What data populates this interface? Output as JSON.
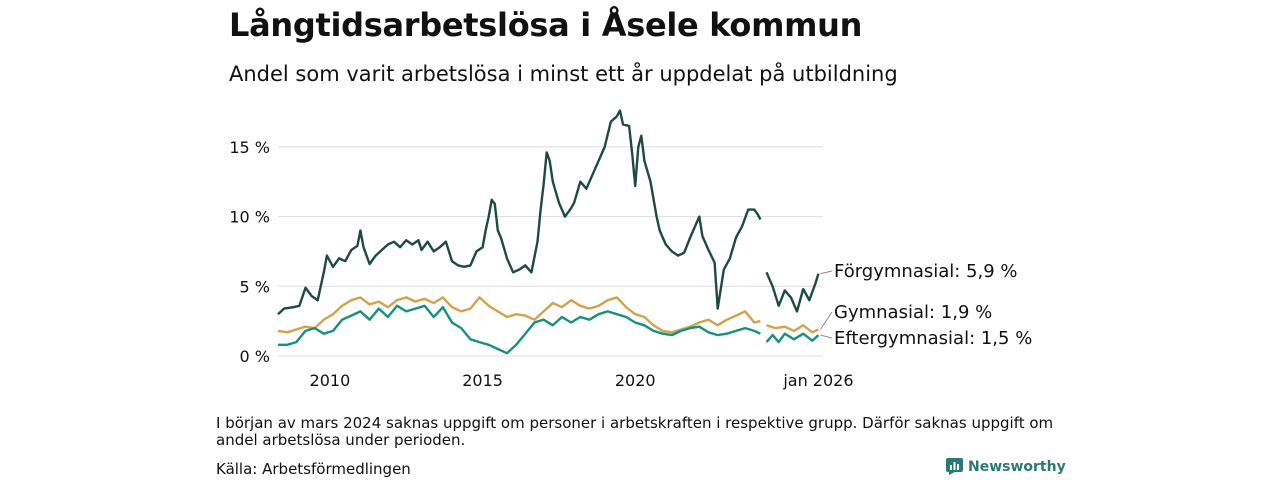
{
  "title": "Långtidsarbetslösa i Åsele kommun",
  "subtitle": "Andel som varit arbetslösa i minst ett år uppdelat på utbildning",
  "note": "I början av mars 2024 saknas uppgift om personer i arbetskraften i respektive grupp. Därför saknas uppgift om andel arbetslösa under perioden.",
  "source": "Källa: Arbetsförmedlingen",
  "brand": "Newsworthy",
  "chart_data": {
    "type": "line",
    "xlim": [
      2008.3,
      2026.15
    ],
    "ylim": [
      0,
      17.5
    ],
    "grid": true,
    "x_ticks": [
      {
        "value": 2010,
        "label": "2010"
      },
      {
        "value": 2015,
        "label": "2015"
      },
      {
        "value": 2020,
        "label": "2020"
      },
      {
        "value": 2026.0,
        "label": "jan 2026"
      }
    ],
    "y_ticks": [
      {
        "value": 0,
        "label": "0 %"
      },
      {
        "value": 5,
        "label": "5 %"
      },
      {
        "value": 10,
        "label": "10 %"
      },
      {
        "value": 15,
        "label": "15 %"
      }
    ],
    "gap": [
      2024.0,
      2024.3
    ],
    "series": [
      {
        "name": "Förgymnasial",
        "end_label": "Förgymnasial: 5,9 %",
        "color": "#1f4a41",
        "points": [
          [
            2008.3,
            3.0
          ],
          [
            2008.5,
            3.4
          ],
          [
            2008.8,
            3.5
          ],
          [
            2009.0,
            3.6
          ],
          [
            2009.2,
            4.9
          ],
          [
            2009.4,
            4.3
          ],
          [
            2009.6,
            4.0
          ],
          [
            2009.8,
            6.0
          ],
          [
            2009.9,
            7.2
          ],
          [
            2010.1,
            6.4
          ],
          [
            2010.3,
            7.0
          ],
          [
            2010.5,
            6.8
          ],
          [
            2010.7,
            7.6
          ],
          [
            2010.9,
            7.9
          ],
          [
            2011.0,
            9.0
          ],
          [
            2011.1,
            7.8
          ],
          [
            2011.3,
            6.6
          ],
          [
            2011.5,
            7.2
          ],
          [
            2011.7,
            7.6
          ],
          [
            2011.9,
            8.0
          ],
          [
            2012.1,
            8.2
          ],
          [
            2012.3,
            7.8
          ],
          [
            2012.5,
            8.3
          ],
          [
            2012.7,
            8.0
          ],
          [
            2012.9,
            8.3
          ],
          [
            2013.0,
            7.6
          ],
          [
            2013.2,
            8.2
          ],
          [
            2013.4,
            7.5
          ],
          [
            2013.6,
            7.8
          ],
          [
            2013.8,
            8.2
          ],
          [
            2014.0,
            6.8
          ],
          [
            2014.2,
            6.5
          ],
          [
            2014.4,
            6.4
          ],
          [
            2014.6,
            6.5
          ],
          [
            2014.8,
            7.5
          ],
          [
            2015.0,
            7.8
          ],
          [
            2015.1,
            9.0
          ],
          [
            2015.2,
            10.0
          ],
          [
            2015.3,
            11.2
          ],
          [
            2015.4,
            10.9
          ],
          [
            2015.5,
            9.0
          ],
          [
            2015.6,
            8.5
          ],
          [
            2015.8,
            7.0
          ],
          [
            2016.0,
            6.0
          ],
          [
            2016.2,
            6.2
          ],
          [
            2016.4,
            6.5
          ],
          [
            2016.6,
            6.0
          ],
          [
            2016.8,
            8.2
          ],
          [
            2016.9,
            10.5
          ],
          [
            2017.0,
            12.3
          ],
          [
            2017.1,
            14.6
          ],
          [
            2017.2,
            14.0
          ],
          [
            2017.3,
            12.5
          ],
          [
            2017.5,
            11.0
          ],
          [
            2017.7,
            10.0
          ],
          [
            2017.9,
            10.6
          ],
          [
            2018.0,
            11.0
          ],
          [
            2018.2,
            12.5
          ],
          [
            2018.4,
            12.0
          ],
          [
            2018.6,
            13.0
          ],
          [
            2018.8,
            14.0
          ],
          [
            2019.0,
            15.0
          ],
          [
            2019.2,
            16.8
          ],
          [
            2019.4,
            17.2
          ],
          [
            2019.5,
            17.6
          ],
          [
            2019.6,
            16.6
          ],
          [
            2019.8,
            16.5
          ],
          [
            2019.9,
            14.5
          ],
          [
            2020.0,
            12.2
          ],
          [
            2020.1,
            15.0
          ],
          [
            2020.2,
            15.8
          ],
          [
            2020.3,
            14.0
          ],
          [
            2020.5,
            12.5
          ],
          [
            2020.7,
            10.0
          ],
          [
            2020.8,
            9.0
          ],
          [
            2020.9,
            8.5
          ],
          [
            2021.0,
            8.0
          ],
          [
            2021.2,
            7.5
          ],
          [
            2021.4,
            7.2
          ],
          [
            2021.6,
            7.4
          ],
          [
            2021.8,
            8.5
          ],
          [
            2022.0,
            9.5
          ],
          [
            2022.1,
            10.0
          ],
          [
            2022.2,
            8.6
          ],
          [
            2022.4,
            7.6
          ],
          [
            2022.6,
            6.7
          ],
          [
            2022.7,
            3.4
          ],
          [
            2022.9,
            6.2
          ],
          [
            2023.1,
            7.0
          ],
          [
            2023.3,
            8.5
          ],
          [
            2023.5,
            9.3
          ],
          [
            2023.7,
            10.5
          ],
          [
            2023.9,
            10.5
          ],
          [
            2024.0,
            10.2
          ],
          [
            2024.1,
            9.8
          ]
        ]
      },
      {
        "name": "Gymnasial",
        "end_label": "Gymnasial: 1,9 %",
        "color": "#d4a24a",
        "points": [
          [
            2008.3,
            1.8
          ],
          [
            2008.6,
            1.7
          ],
          [
            2008.9,
            1.9
          ],
          [
            2009.2,
            2.1
          ],
          [
            2009.5,
            2.0
          ],
          [
            2009.8,
            2.6
          ],
          [
            2010.1,
            3.0
          ],
          [
            2010.4,
            3.6
          ],
          [
            2010.7,
            4.0
          ],
          [
            2011.0,
            4.2
          ],
          [
            2011.3,
            3.7
          ],
          [
            2011.6,
            3.9
          ],
          [
            2011.9,
            3.5
          ],
          [
            2012.2,
            4.0
          ],
          [
            2012.5,
            4.2
          ],
          [
            2012.8,
            3.9
          ],
          [
            2013.1,
            4.1
          ],
          [
            2013.4,
            3.8
          ],
          [
            2013.7,
            4.2
          ],
          [
            2014.0,
            3.5
          ],
          [
            2014.3,
            3.2
          ],
          [
            2014.6,
            3.4
          ],
          [
            2014.9,
            4.2
          ],
          [
            2015.2,
            3.6
          ],
          [
            2015.5,
            3.2
          ],
          [
            2015.8,
            2.8
          ],
          [
            2016.1,
            3.0
          ],
          [
            2016.4,
            2.9
          ],
          [
            2016.7,
            2.6
          ],
          [
            2017.0,
            3.2
          ],
          [
            2017.3,
            3.8
          ],
          [
            2017.6,
            3.5
          ],
          [
            2017.9,
            4.0
          ],
          [
            2018.2,
            3.6
          ],
          [
            2018.5,
            3.4
          ],
          [
            2018.8,
            3.6
          ],
          [
            2019.1,
            4.0
          ],
          [
            2019.4,
            4.2
          ],
          [
            2019.7,
            3.5
          ],
          [
            2020.0,
            3.0
          ],
          [
            2020.3,
            2.8
          ],
          [
            2020.6,
            2.2
          ],
          [
            2020.9,
            1.8
          ],
          [
            2021.2,
            1.7
          ],
          [
            2021.5,
            1.9
          ],
          [
            2021.8,
            2.1
          ],
          [
            2022.1,
            2.4
          ],
          [
            2022.4,
            2.6
          ],
          [
            2022.7,
            2.2
          ],
          [
            2023.0,
            2.6
          ],
          [
            2023.3,
            2.9
          ],
          [
            2023.6,
            3.2
          ],
          [
            2023.9,
            2.4
          ],
          [
            2024.1,
            2.5
          ]
        ]
      },
      {
        "name": "Eftergymnasial",
        "end_label": "Eftergymnasial: 1,5 %",
        "color": "#17917e",
        "points": [
          [
            2008.3,
            0.8
          ],
          [
            2008.6,
            0.8
          ],
          [
            2008.9,
            1.0
          ],
          [
            2009.2,
            1.8
          ],
          [
            2009.5,
            2.0
          ],
          [
            2009.8,
            1.6
          ],
          [
            2010.1,
            1.8
          ],
          [
            2010.4,
            2.6
          ],
          [
            2010.7,
            2.9
          ],
          [
            2011.0,
            3.2
          ],
          [
            2011.3,
            2.6
          ],
          [
            2011.6,
            3.4
          ],
          [
            2011.9,
            2.8
          ],
          [
            2012.2,
            3.6
          ],
          [
            2012.5,
            3.2
          ],
          [
            2012.8,
            3.4
          ],
          [
            2013.1,
            3.6
          ],
          [
            2013.4,
            2.8
          ],
          [
            2013.7,
            3.5
          ],
          [
            2014.0,
            2.4
          ],
          [
            2014.3,
            2.0
          ],
          [
            2014.6,
            1.2
          ],
          [
            2014.9,
            1.0
          ],
          [
            2015.2,
            0.8
          ],
          [
            2015.5,
            0.5
          ],
          [
            2015.8,
            0.2
          ],
          [
            2016.1,
            0.8
          ],
          [
            2016.4,
            1.6
          ],
          [
            2016.7,
            2.4
          ],
          [
            2017.0,
            2.6
          ],
          [
            2017.3,
            2.2
          ],
          [
            2017.6,
            2.8
          ],
          [
            2017.9,
            2.4
          ],
          [
            2018.2,
            2.8
          ],
          [
            2018.5,
            2.6
          ],
          [
            2018.8,
            3.0
          ],
          [
            2019.1,
            3.2
          ],
          [
            2019.4,
            3.0
          ],
          [
            2019.7,
            2.8
          ],
          [
            2020.0,
            2.4
          ],
          [
            2020.3,
            2.2
          ],
          [
            2020.6,
            1.8
          ],
          [
            2020.9,
            1.6
          ],
          [
            2021.2,
            1.5
          ],
          [
            2021.5,
            1.8
          ],
          [
            2021.8,
            2.0
          ],
          [
            2022.1,
            2.1
          ],
          [
            2022.4,
            1.7
          ],
          [
            2022.7,
            1.5
          ],
          [
            2023.0,
            1.6
          ],
          [
            2023.3,
            1.8
          ],
          [
            2023.6,
            2.0
          ],
          [
            2023.9,
            1.8
          ],
          [
            2024.1,
            1.6
          ]
        ]
      }
    ],
    "post_gap": {
      "Förgymnasial": [
        [
          2024.3,
          6.0
        ],
        [
          2024.5,
          5.0
        ],
        [
          2024.7,
          3.6
        ],
        [
          2024.9,
          4.7
        ],
        [
          2025.1,
          4.2
        ],
        [
          2025.3,
          3.2
        ],
        [
          2025.5,
          4.8
        ],
        [
          2025.7,
          4.0
        ],
        [
          2025.9,
          5.2
        ],
        [
          2026.0,
          5.9
        ]
      ],
      "Gymnasial": [
        [
          2024.3,
          2.2
        ],
        [
          2024.6,
          2.0
        ],
        [
          2024.9,
          2.1
        ],
        [
          2025.2,
          1.8
        ],
        [
          2025.5,
          2.2
        ],
        [
          2025.8,
          1.7
        ],
        [
          2026.0,
          1.9
        ]
      ],
      "Eftergymnasial": [
        [
          2024.3,
          1.0
        ],
        [
          2024.5,
          1.5
        ],
        [
          2024.7,
          1.0
        ],
        [
          2024.9,
          1.6
        ],
        [
          2025.2,
          1.2
        ],
        [
          2025.5,
          1.6
        ],
        [
          2025.8,
          1.1
        ],
        [
          2026.0,
          1.5
        ]
      ]
    }
  }
}
